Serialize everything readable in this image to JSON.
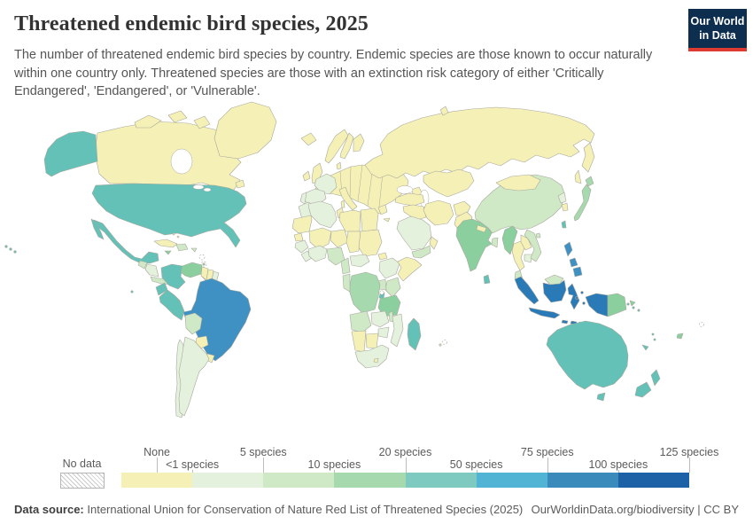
{
  "header": {
    "title": "Threatened endemic bird species, 2025",
    "subtitle": "The number of threatened endemic bird species by country. Endemic species are those known to occur naturally within one country only. Threatened species are those with an extinction risk category of either 'Critically Endangered', 'Endangered', or 'Vulnerable'.",
    "logo": {
      "line1": "Our World",
      "line2": "in Data",
      "bg_color": "#0d2e4e",
      "stripe_color": "#dd3b32"
    }
  },
  "legend": {
    "no_data_label": "No data",
    "bin_colors": [
      "#f5f1b6",
      "#e4f1dc",
      "#cfe8c6",
      "#a6d9ad",
      "#7ecac1",
      "#52b4d5",
      "#3a8bbb",
      "#1d61a6"
    ],
    "labels": [
      {
        "text": "None",
        "row": "top",
        "t": 0.0625
      },
      {
        "text": "<1 species",
        "row": "bottom",
        "t": 0.125
      },
      {
        "text": "5 species",
        "row": "top",
        "t": 0.25
      },
      {
        "text": "10 species",
        "row": "bottom",
        "t": 0.375
      },
      {
        "text": "20 species",
        "row": "top",
        "t": 0.5
      },
      {
        "text": "50 species",
        "row": "bottom",
        "t": 0.625
      },
      {
        "text": "75 species",
        "row": "top",
        "t": 0.75
      },
      {
        "text": "100 species",
        "row": "bottom",
        "t": 0.875
      },
      {
        "text": "125 species",
        "row": "top",
        "t": 1.0
      }
    ]
  },
  "footer": {
    "label": "Data source:",
    "source": "International Union for Conservation of Nature Red List of Threatened Species (2025)",
    "right_text": "OurWorldinData.org/biodiversity | CC BY"
  },
  "map_style": {
    "border_color": "#a8a89e",
    "ocean_color": "#ffffff"
  },
  "chart_data": {
    "type": "choropleth",
    "title": "Threatened endemic bird species, 2025",
    "unit": "species",
    "bin_edges": [
      "None",
      "<1",
      "5",
      "10",
      "20",
      "50",
      "75",
      "100",
      "125"
    ],
    "bins": [
      {
        "label": "None",
        "color": "#f5f1b6",
        "countries": [
          "Canada",
          "Greenland",
          "Iceland",
          "Ireland",
          "United Kingdom",
          "Norway",
          "Sweden",
          "Finland",
          "Denmark",
          "Europe (other)",
          "Italy",
          "Greece",
          "Turkey",
          "Russia",
          "Central Asia",
          "Middle East (other)",
          "Iran",
          "Afghanistan",
          "Pakistan",
          "Nepal",
          "Mongolia",
          "South Korea",
          "Thailand",
          "Laos",
          "Cuba",
          "Bahamas",
          "Guyana",
          "Suriname",
          "Paraguay",
          "Uruguay",
          "Mauritania",
          "Mali",
          "Niger",
          "Chad",
          "Sudan",
          "Eritrea",
          "Libya",
          "Egypt",
          "Tunisia",
          "Senegal",
          "Somalia",
          "Namibia",
          "Botswana",
          "Lesotho"
        ]
      },
      {
        "label": "<1-5",
        "color": "#e4f1dc",
        "countries": [
          "France",
          "Spain",
          "Portugal",
          "Morocco",
          "Algeria",
          "Saudi Arabia",
          "Central African Republic",
          "Ethiopia",
          "Guinea",
          "Sierra Leone & Liberia",
          "Ivory Coast & Ghana",
          "Zambia",
          "Zimbabwe",
          "Mozambique",
          "South Africa",
          "Chile",
          "Argentina",
          "Honduras & Nicaragua",
          "Cambodia",
          "French Guiana",
          "North Korea"
        ]
      },
      {
        "label": "5-10",
        "color": "#cfe8c6",
        "countries": [
          "China",
          "Vietnam",
          "Malaysia",
          "Bangladesh",
          "Bolivia",
          "Nigeria",
          "Cameroon",
          "Gabon & Congo",
          "Kenya",
          "Uganda",
          "Angola",
          "Malawi",
          "Guatemala",
          "Costa Rica & Panama",
          "Hispaniola",
          "Puerto Rico",
          "Yemen",
          "Mauritius"
        ]
      },
      {
        "label": "10-20",
        "color": "#a6d9ad",
        "countries": [
          "Japan",
          "DR Congo"
        ]
      },
      {
        "label": "10-20",
        "color": "#8bcf9f",
        "countries": [
          "India",
          "Tanzania",
          "Venezuela",
          "Papua New Guinea",
          "Myanmar",
          "Jamaica",
          "Trinidad and Tobago",
          "Fiji",
          "Timor-Leste",
          "Dominica"
        ]
      },
      {
        "label": "20-50",
        "color": "#64c1b8",
        "countries": [
          "United States",
          "Mexico",
          "Colombia",
          "Ecuador",
          "Peru",
          "Madagascar",
          "Sri Lanka",
          "Taiwan",
          "Australia",
          "New Zealand",
          "Solomon Islands",
          "New Caledonia",
          "Vanuatu",
          "Rwanda & Burundi"
        ]
      },
      {
        "label": "75-100",
        "color": "#3f90c3",
        "countries": [
          "Brazil",
          "Philippines"
        ]
      },
      {
        "label": "100-125",
        "color": "#2a7ab8",
        "countries": [
          "Indonesia"
        ]
      }
    ]
  }
}
